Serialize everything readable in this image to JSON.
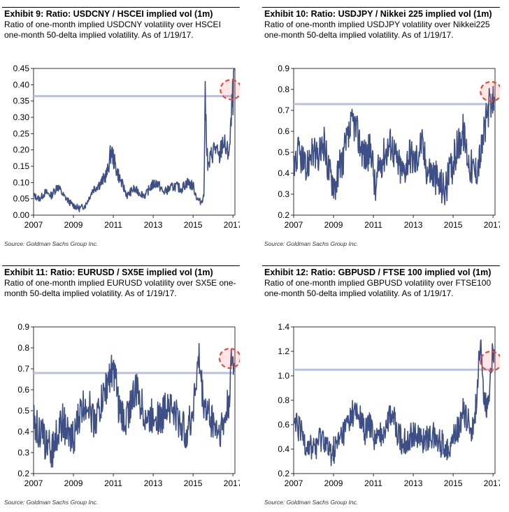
{
  "chart_data": [
    {
      "type": "line",
      "title": "Exhibit 9: Ratio: USDCNY / HSCEI implied vol (1m)",
      "subtitle": "Ratio of one-month implied USDCNY volatility over HSCEI one-month 50-delta implied volatility. As of 1/19/17.",
      "source": "Source: Goldman Sachs Group Inc.",
      "xlabel": "",
      "ylabel": "",
      "x_range": [
        2007,
        2017.1
      ],
      "ylim": [
        0.0,
        0.45
      ],
      "x_ticks": [
        "2007",
        "2009",
        "2011",
        "2013",
        "2015",
        "2017"
      ],
      "y_ticks": [
        "0.00",
        "0.05",
        "0.10",
        "0.15",
        "0.20",
        "0.25",
        "0.30",
        "0.35",
        "0.40",
        "0.45"
      ],
      "reference_line": 0.365,
      "highlight": {
        "x": 2016.9,
        "y": 0.385
      },
      "series": [
        {
          "x": [
            2007.0,
            2007.3,
            2007.6,
            2007.9,
            2008.2,
            2008.5,
            2008.8,
            2009.0,
            2009.3,
            2009.6,
            2010.0,
            2010.4,
            2010.7,
            2010.9,
            2011.1,
            2011.4,
            2011.7,
            2012.0,
            2012.3,
            2012.6,
            2012.9,
            2013.2,
            2013.5,
            2013.8,
            2014.1,
            2014.4,
            2014.7,
            2015.0,
            2015.2,
            2015.4,
            2015.55,
            2015.6,
            2015.75,
            2015.9,
            2016.1,
            2016.3,
            2016.5,
            2016.7,
            2016.85,
            2016.95,
            2017.05
          ],
          "values": [
            0.06,
            0.05,
            0.07,
            0.06,
            0.09,
            0.06,
            0.04,
            0.03,
            0.02,
            0.03,
            0.08,
            0.1,
            0.13,
            0.2,
            0.15,
            0.1,
            0.06,
            0.08,
            0.07,
            0.06,
            0.09,
            0.1,
            0.07,
            0.08,
            0.09,
            0.08,
            0.1,
            0.09,
            0.05,
            0.04,
            0.06,
            0.36,
            0.14,
            0.18,
            0.21,
            0.17,
            0.23,
            0.19,
            0.21,
            0.33,
            0.4
          ],
          "volatility": 0.02
        }
      ]
    },
    {
      "type": "line",
      "title": "Exhibit 10: Ratio: USDJPY / Nikkei 225 implied vol (1m)",
      "subtitle": "Ratio of one-month implied USDJPY volatility over Nikkei225 one-month 50-delta implied volatility. As of 1/19/17.",
      "source": "Source: Goldman Sachs Group Inc.",
      "xlabel": "",
      "ylabel": "",
      "x_range": [
        2007,
        2017.1
      ],
      "ylim": [
        0.2,
        0.9
      ],
      "x_ticks": [
        "2007",
        "2009",
        "2011",
        "2013",
        "2015",
        "2017"
      ],
      "y_ticks": [
        "0.2",
        "0.3",
        "0.4",
        "0.5",
        "0.6",
        "0.7",
        "0.8",
        "0.9"
      ],
      "reference_line": 0.73,
      "highlight": {
        "x": 2016.9,
        "y": 0.79
      },
      "series": [
        {
          "x": [
            2007.0,
            2007.3,
            2007.6,
            2007.9,
            2008.2,
            2008.5,
            2008.8,
            2009.1,
            2009.4,
            2009.7,
            2010.0,
            2010.3,
            2010.6,
            2010.9,
            2011.1,
            2011.3,
            2011.6,
            2011.9,
            2012.2,
            2012.5,
            2012.8,
            2013.1,
            2013.4,
            2013.7,
            2014.0,
            2014.3,
            2014.6,
            2014.9,
            2015.2,
            2015.5,
            2015.8,
            2016.1,
            2016.4,
            2016.6,
            2016.8,
            2016.95,
            2017.05
          ],
          "values": [
            0.45,
            0.5,
            0.4,
            0.52,
            0.45,
            0.55,
            0.4,
            0.35,
            0.45,
            0.55,
            0.65,
            0.55,
            0.48,
            0.52,
            0.3,
            0.45,
            0.5,
            0.55,
            0.45,
            0.4,
            0.5,
            0.45,
            0.55,
            0.42,
            0.4,
            0.35,
            0.32,
            0.42,
            0.52,
            0.6,
            0.45,
            0.4,
            0.5,
            0.62,
            0.72,
            0.68,
            0.8
          ],
          "volatility": 0.09
        }
      ]
    },
    {
      "type": "line",
      "title": "Exhibit 11: Ratio: EURUSD / SX5E implied vol (1m)",
      "subtitle": "Ratio of one-month implied EURUSD volatility over SX5E one-month 50-delta implied volatility. As of 1/19/17.",
      "source": "Source: Goldman Sachs Group Inc.",
      "xlabel": "",
      "ylabel": "",
      "x_range": [
        2007,
        2017.1
      ],
      "ylim": [
        0.2,
        0.9
      ],
      "x_ticks": [
        "2007",
        "2009",
        "2011",
        "2013",
        "2015",
        "2017"
      ],
      "y_ticks": [
        "0.2",
        "0.3",
        "0.4",
        "0.5",
        "0.6",
        "0.7",
        "0.8",
        "0.9"
      ],
      "reference_line": 0.68,
      "highlight": {
        "x": 2016.85,
        "y": 0.75
      },
      "series": [
        {
          "x": [
            2007.0,
            2007.3,
            2007.6,
            2007.9,
            2008.2,
            2008.5,
            2008.8,
            2009.1,
            2009.4,
            2009.7,
            2010.0,
            2010.3,
            2010.6,
            2010.9,
            2011.1,
            2011.3,
            2011.6,
            2011.9,
            2012.2,
            2012.5,
            2012.8,
            2013.1,
            2013.4,
            2013.7,
            2014.0,
            2014.3,
            2014.6,
            2014.9,
            2015.1,
            2015.3,
            2015.5,
            2015.7,
            2016.0,
            2016.3,
            2016.6,
            2016.8,
            2016.95,
            2017.05
          ],
          "values": [
            0.45,
            0.4,
            0.35,
            0.3,
            0.4,
            0.45,
            0.35,
            0.4,
            0.5,
            0.55,
            0.45,
            0.5,
            0.6,
            0.7,
            0.65,
            0.5,
            0.45,
            0.55,
            0.6,
            0.5,
            0.45,
            0.5,
            0.45,
            0.55,
            0.5,
            0.45,
            0.4,
            0.45,
            0.6,
            0.75,
            0.55,
            0.5,
            0.45,
            0.4,
            0.45,
            0.55,
            0.75,
            0.7
          ],
          "volatility": 0.09
        }
      ]
    },
    {
      "type": "line",
      "title": "Exhibit 12: Ratio: GBPUSD / FTSE 100 implied vol (1m)",
      "subtitle": "Ratio of one-month implied GBPUSD volatility over FTSE100 one-month 50-delta implied volatility. As of 1/19/17.",
      "source": "Source: Goldman Sachs Group Inc.",
      "xlabel": "",
      "ylabel": "",
      "x_range": [
        2007,
        2017.1
      ],
      "ylim": [
        0.2,
        1.4
      ],
      "x_ticks": [
        "2007",
        "2009",
        "2011",
        "2013",
        "2015",
        "2017"
      ],
      "y_ticks": [
        "0.2",
        "0.4",
        "0.6",
        "0.8",
        "1.0",
        "1.2",
        "1.4"
      ],
      "reference_line": 1.05,
      "highlight": {
        "x": 2016.9,
        "y": 1.12
      },
      "series": [
        {
          "x": [
            2007.0,
            2007.3,
            2007.6,
            2007.9,
            2008.2,
            2008.5,
            2008.8,
            2009.1,
            2009.4,
            2009.7,
            2010.0,
            2010.3,
            2010.6,
            2010.9,
            2011.1,
            2011.3,
            2011.6,
            2011.9,
            2012.2,
            2012.5,
            2012.8,
            2013.1,
            2013.4,
            2013.7,
            2014.0,
            2014.3,
            2014.6,
            2014.9,
            2015.2,
            2015.5,
            2015.8,
            2016.0,
            2016.2,
            2016.35,
            2016.5,
            2016.7,
            2016.85,
            2016.95,
            2017.05
          ],
          "values": [
            0.6,
            0.55,
            0.45,
            0.4,
            0.45,
            0.5,
            0.35,
            0.4,
            0.5,
            0.6,
            0.7,
            0.65,
            0.55,
            0.6,
            0.45,
            0.5,
            0.6,
            0.7,
            0.55,
            0.45,
            0.5,
            0.55,
            0.45,
            0.5,
            0.5,
            0.45,
            0.42,
            0.45,
            0.55,
            0.7,
            0.6,
            0.55,
            0.85,
            1.3,
            0.9,
            0.7,
            0.95,
            1.15,
            1.1
          ],
          "volatility": 0.12
        }
      ]
    }
  ]
}
